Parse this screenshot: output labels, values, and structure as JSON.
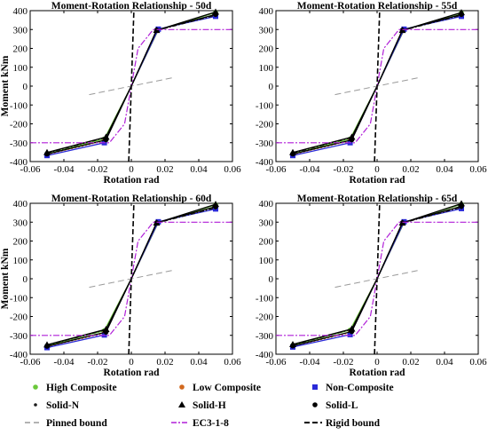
{
  "figure": {
    "legend": [
      {
        "key": "high",
        "label": "High Composite",
        "marker": "dot",
        "color": "#6bc83a"
      },
      {
        "key": "low",
        "label": "Low Composite",
        "marker": "dot",
        "color": "#d2691e"
      },
      {
        "key": "non",
        "label": "Non-Composite",
        "marker": "square",
        "color": "#2a2ad8"
      },
      {
        "key": "solidN",
        "label": "Solid-N",
        "marker": "dash-dot",
        "color": "#1a1a1a"
      },
      {
        "key": "solidH",
        "label": "Solid-H",
        "marker": "triangle",
        "color": "#000000"
      },
      {
        "key": "solidL",
        "label": "Solid-L",
        "marker": "dot",
        "color": "#000000"
      },
      {
        "key": "pinned",
        "label": "Pinned bound",
        "marker": "line",
        "color": "#9a9a9a"
      },
      {
        "key": "ec3",
        "label": "EC3-1-8",
        "marker": "line",
        "color": "#b01fd8"
      },
      {
        "key": "rigid",
        "label": "Rigid bound",
        "marker": "line",
        "color": "#000000"
      }
    ]
  },
  "chart_data": [
    {
      "type": "line",
      "title": "Moment-Rotation Relationship - 50d",
      "xlabel": "Rotation rad",
      "ylabel": "Moment kNm",
      "xlim": [
        -0.06,
        0.06
      ],
      "ylim": [
        -400,
        400
      ],
      "xticks": [
        "-0.06",
        "-0.04",
        "-0.02",
        "0",
        "0.02",
        "0.04",
        "0.06"
      ],
      "yticks": [
        "-400",
        "-300",
        "-200",
        "-100",
        "0",
        "100",
        "200",
        "300",
        "400"
      ],
      "series": [
        {
          "name": "High Composite",
          "x": [
            -0.05,
            -0.016,
            0,
            0.016,
            0.05
          ],
          "y": [
            -358,
            -280,
            0,
            298,
            390
          ]
        },
        {
          "name": "Low Composite",
          "x": [
            -0.05,
            -0.016,
            0,
            0.016,
            0.05
          ],
          "y": [
            -362,
            -290,
            0,
            300,
            378
          ]
        },
        {
          "name": "Non-Composite",
          "x": [
            -0.05,
            -0.016,
            0,
            0.016,
            0.05
          ],
          "y": [
            -368,
            -300,
            0,
            302,
            370
          ]
        },
        {
          "name": "Solid-N",
          "x": [
            -0.05,
            -0.015,
            0,
            0.015,
            0.05
          ],
          "y": [
            -355,
            -272,
            0,
            295,
            375
          ]
        },
        {
          "name": "Solid-H",
          "x": [
            -0.05,
            -0.015,
            0,
            0.015,
            0.05
          ],
          "y": [
            -352,
            -270,
            0,
            296,
            393
          ]
        },
        {
          "name": "Solid-L",
          "x": [
            -0.05,
            -0.015,
            0,
            0.015,
            0.05
          ],
          "y": [
            -360,
            -285,
            0,
            297,
            380
          ]
        },
        {
          "name": "Pinned bound",
          "x": [
            -0.025,
            0.025
          ],
          "y": [
            -45,
            45
          ]
        },
        {
          "name": "EC3-1-8",
          "x": [
            -0.06,
            -0.013,
            -0.004,
            0,
            0.004,
            0.013,
            0.06
          ],
          "y": [
            -300,
            -300,
            -200,
            0,
            200,
            300,
            300
          ]
        },
        {
          "name": "Rigid bound",
          "x": [
            -0.0015,
            0.0015
          ],
          "y": [
            -400,
            400
          ]
        }
      ]
    },
    {
      "type": "line",
      "title": "Moment-Rotation Relationship - 55d",
      "xlabel": "Rotation rad",
      "ylabel": "",
      "xlim": [
        -0.06,
        0.06
      ],
      "ylim": [
        -400,
        400
      ],
      "xticks": [
        "-0.06",
        "-0.04",
        "-0.02",
        "0",
        "0.02",
        "0.04",
        "0.06"
      ],
      "yticks": [
        "-400",
        "-300",
        "-200",
        "-100",
        "0",
        "100",
        "200",
        "300",
        "400"
      ],
      "series": [
        {
          "name": "High Composite",
          "x": [
            -0.05,
            -0.016,
            0,
            0.016,
            0.05
          ],
          "y": [
            -358,
            -280,
            0,
            298,
            388
          ]
        },
        {
          "name": "Low Composite",
          "x": [
            -0.05,
            -0.016,
            0,
            0.016,
            0.05
          ],
          "y": [
            -362,
            -290,
            0,
            300,
            378
          ]
        },
        {
          "name": "Non-Composite",
          "x": [
            -0.05,
            -0.016,
            0,
            0.016,
            0.05
          ],
          "y": [
            -368,
            -300,
            0,
            302,
            370
          ]
        },
        {
          "name": "Solid-N",
          "x": [
            -0.05,
            -0.015,
            0,
            0.015,
            0.05
          ],
          "y": [
            -355,
            -272,
            0,
            295,
            375
          ]
        },
        {
          "name": "Solid-H",
          "x": [
            -0.05,
            -0.015,
            0,
            0.015,
            0.05
          ],
          "y": [
            -352,
            -270,
            0,
            296,
            390
          ]
        },
        {
          "name": "Solid-L",
          "x": [
            -0.05,
            -0.015,
            0,
            0.015,
            0.05
          ],
          "y": [
            -360,
            -285,
            0,
            297,
            380
          ]
        },
        {
          "name": "Pinned bound",
          "x": [
            -0.025,
            0.025
          ],
          "y": [
            -45,
            45
          ]
        },
        {
          "name": "EC3-1-8",
          "x": [
            -0.06,
            -0.013,
            -0.004,
            0,
            0.004,
            0.013,
            0.06
          ],
          "y": [
            -300,
            -300,
            -200,
            0,
            200,
            300,
            300
          ]
        },
        {
          "name": "Rigid bound",
          "x": [
            -0.0015,
            0.0015
          ],
          "y": [
            -400,
            400
          ]
        }
      ]
    },
    {
      "type": "line",
      "title": "Moment-Rotation Relationship - 60d",
      "xlabel": "Rotation rad",
      "ylabel": "Moment kNm",
      "xlim": [
        -0.06,
        0.06
      ],
      "ylim": [
        -400,
        400
      ],
      "xticks": [
        "-0.06",
        "-0.04",
        "-0.02",
        "0",
        "0.02",
        "0.04",
        "0.06"
      ],
      "yticks": [
        "-400",
        "-300",
        "-200",
        "-100",
        "0",
        "100",
        "200",
        "300",
        "400"
      ],
      "series": [
        {
          "name": "High Composite",
          "x": [
            -0.05,
            -0.016,
            0,
            0.016,
            0.05
          ],
          "y": [
            -355,
            -275,
            0,
            298,
            392
          ]
        },
        {
          "name": "Low Composite",
          "x": [
            -0.05,
            -0.016,
            0,
            0.016,
            0.05
          ],
          "y": [
            -360,
            -288,
            0,
            300,
            380
          ]
        },
        {
          "name": "Non-Composite",
          "x": [
            -0.05,
            -0.016,
            0,
            0.016,
            0.05
          ],
          "y": [
            -365,
            -298,
            0,
            302,
            370
          ]
        },
        {
          "name": "Solid-N",
          "x": [
            -0.05,
            -0.015,
            0,
            0.015,
            0.05
          ],
          "y": [
            -352,
            -270,
            0,
            295,
            376
          ]
        },
        {
          "name": "Solid-H",
          "x": [
            -0.05,
            -0.015,
            0,
            0.015,
            0.05
          ],
          "y": [
            -350,
            -268,
            0,
            296,
            395
          ]
        },
        {
          "name": "Solid-L",
          "x": [
            -0.05,
            -0.015,
            0,
            0.015,
            0.05
          ],
          "y": [
            -358,
            -283,
            0,
            297,
            382
          ]
        },
        {
          "name": "Pinned bound",
          "x": [
            -0.025,
            0.025
          ],
          "y": [
            -45,
            45
          ]
        },
        {
          "name": "EC3-1-8",
          "x": [
            -0.06,
            -0.013,
            -0.004,
            0,
            0.004,
            0.013,
            0.06
          ],
          "y": [
            -300,
            -300,
            -200,
            0,
            200,
            300,
            300
          ]
        },
        {
          "name": "Rigid bound",
          "x": [
            -0.0015,
            0.0015
          ],
          "y": [
            -400,
            400
          ]
        }
      ]
    },
    {
      "type": "line",
      "title": "Moment-Rotation Relationship - 65d",
      "xlabel": "Rotation rad",
      "ylabel": "",
      "xlim": [
        -0.06,
        0.06
      ],
      "ylim": [
        -400,
        400
      ],
      "xticks": [
        "-0.06",
        "-0.04",
        "-0.02",
        "0",
        "0.02",
        "0.04",
        "0.06"
      ],
      "yticks": [
        "-400",
        "-300",
        "-200",
        "-100",
        "0",
        "100",
        "200",
        "300",
        "400"
      ],
      "series": [
        {
          "name": "High Composite",
          "x": [
            -0.05,
            -0.016,
            0,
            0.016,
            0.05
          ],
          "y": [
            -352,
            -272,
            0,
            298,
            395
          ]
        },
        {
          "name": "Low Composite",
          "x": [
            -0.05,
            -0.016,
            0,
            0.016,
            0.05
          ],
          "y": [
            -358,
            -285,
            0,
            300,
            382
          ]
        },
        {
          "name": "Non-Composite",
          "x": [
            -0.05,
            -0.016,
            0,
            0.016,
            0.05
          ],
          "y": [
            -362,
            -296,
            0,
            302,
            372
          ]
        },
        {
          "name": "Solid-N",
          "x": [
            -0.05,
            -0.015,
            0,
            0.015,
            0.05
          ],
          "y": [
            -350,
            -268,
            0,
            295,
            378
          ]
        },
        {
          "name": "Solid-H",
          "x": [
            -0.05,
            -0.015,
            0,
            0.015,
            0.05
          ],
          "y": [
            -348,
            -266,
            0,
            296,
            398
          ]
        },
        {
          "name": "Solid-L",
          "x": [
            -0.05,
            -0.015,
            0,
            0.015,
            0.05
          ],
          "y": [
            -356,
            -280,
            0,
            297,
            384
          ]
        },
        {
          "name": "Pinned bound",
          "x": [
            -0.025,
            0.025
          ],
          "y": [
            -45,
            45
          ]
        },
        {
          "name": "EC3-1-8",
          "x": [
            -0.06,
            -0.013,
            -0.004,
            0,
            0.004,
            0.013,
            0.06
          ],
          "y": [
            -300,
            -300,
            -200,
            0,
            200,
            300,
            300
          ]
        },
        {
          "name": "Rigid bound",
          "x": [
            -0.0015,
            0.0015
          ],
          "y": [
            -400,
            400
          ]
        }
      ]
    }
  ]
}
